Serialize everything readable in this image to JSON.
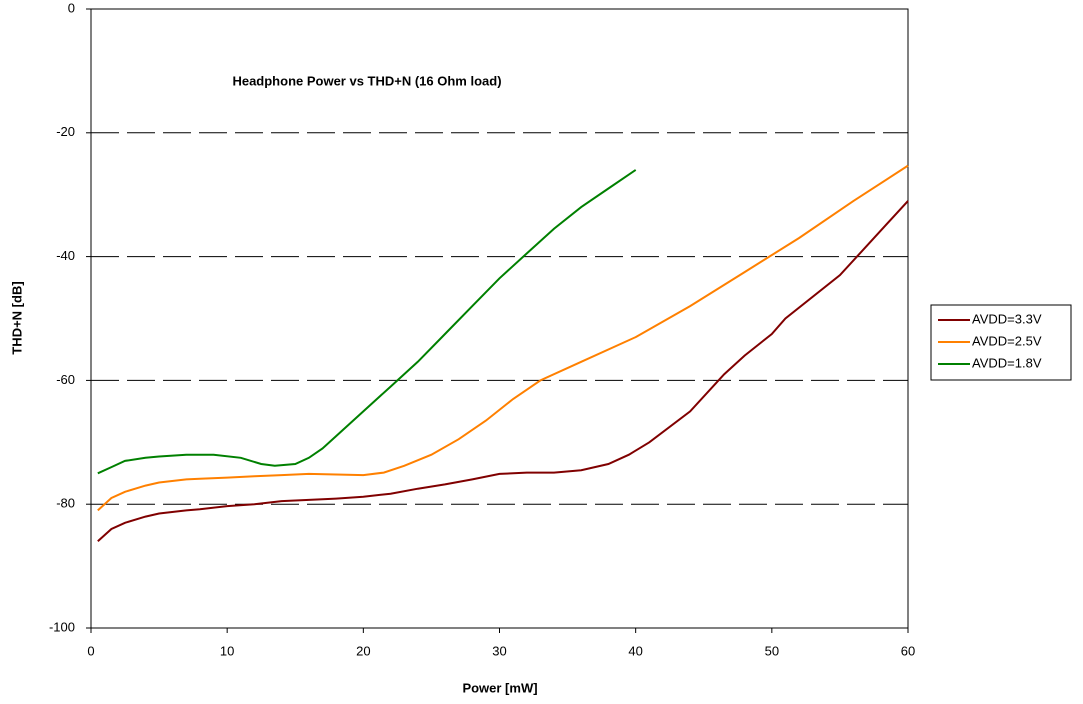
{
  "chart_data": {
    "type": "line",
    "title": "Headphone Power vs THD+N (16 Ohm load)",
    "x_label": "Power [mW]",
    "y_label": "THD+N [dB]",
    "xlim": [
      0,
      60
    ],
    "xticks": [
      0,
      10,
      20,
      30,
      40,
      50,
      60
    ],
    "ylim": [
      -100,
      0
    ],
    "yticks": [
      -100,
      -80,
      -60,
      -40,
      -20,
      0
    ],
    "grid": true,
    "legend": "right",
    "series": [
      {
        "name": "AVDD=3.3V",
        "color": "#800000",
        "x": [
          0.5,
          1.5,
          2.5,
          4,
          5,
          7,
          8,
          10,
          12,
          14,
          16,
          18,
          20,
          22,
          24,
          26,
          28,
          30,
          32,
          34,
          36,
          38,
          39.5,
          41,
          44,
          46.5,
          48,
          50,
          51,
          55,
          60
        ],
        "values": [
          -86,
          -84,
          -83,
          -82,
          -81.5,
          -81,
          -80.8,
          -80.3,
          -80,
          -79.5,
          -79.3,
          -79.1,
          -78.8,
          -78.3,
          -77.5,
          -76.8,
          -76,
          -75.1,
          -74.9,
          -74.9,
          -74.5,
          -73.5,
          -72,
          -70,
          -65,
          -59,
          -56,
          -52.5,
          -50,
          -43,
          -31
        ]
      },
      {
        "name": "AVDD=2.5V",
        "color": "#ff8000",
        "x": [
          0.5,
          1.5,
          2.5,
          4,
          5,
          7,
          8,
          10,
          12,
          14,
          16,
          18,
          20,
          21.5,
          23,
          25,
          27,
          29,
          31,
          33,
          36,
          40,
          44,
          48,
          52,
          56,
          60
        ],
        "values": [
          -81,
          -79,
          -78,
          -77,
          -76.5,
          -76,
          -75.9,
          -75.7,
          -75.5,
          -75.3,
          -75.1,
          -75.2,
          -75.3,
          -74.9,
          -73.8,
          -72,
          -69.5,
          -66.5,
          -63,
          -60,
          -57,
          -53,
          -48,
          -42.5,
          -37,
          -31,
          -25.3
        ]
      },
      {
        "name": "AVDD=1.8V",
        "color": "#008000",
        "x": [
          0.5,
          1.5,
          2.5,
          4,
          5,
          7,
          9,
          11,
          12.5,
          13.5,
          15,
          16,
          17,
          18,
          20,
          22,
          24,
          26,
          28,
          30,
          32,
          34,
          36,
          38,
          40
        ],
        "values": [
          -75,
          -74,
          -73,
          -72.5,
          -72.3,
          -72,
          -72,
          -72.5,
          -73.5,
          -73.8,
          -73.5,
          -72.5,
          -71,
          -69,
          -65,
          -61,
          -57,
          -52.5,
          -48,
          -43.5,
          -39.5,
          -35.5,
          -32,
          -29,
          -26
        ]
      }
    ]
  }
}
